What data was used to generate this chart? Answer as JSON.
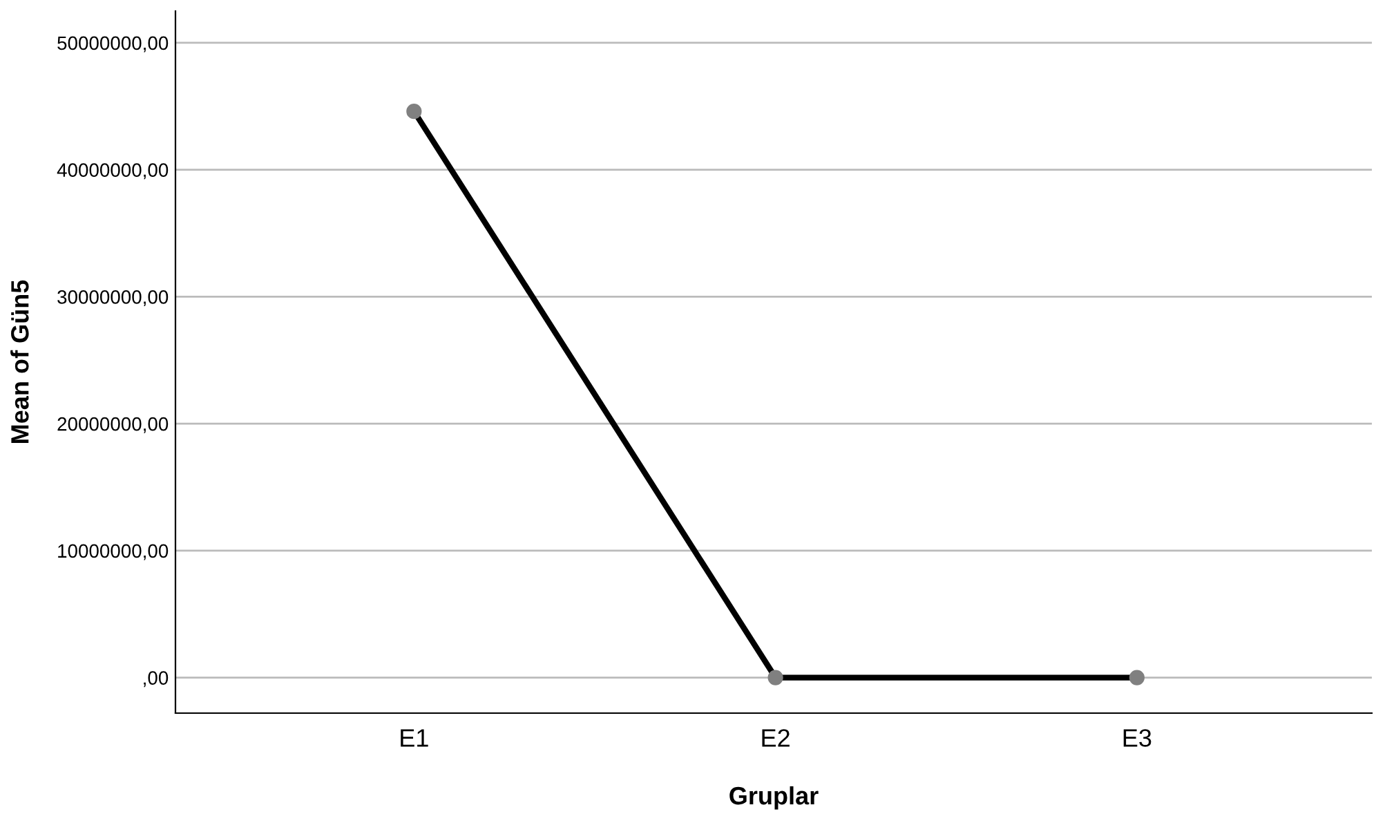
{
  "chart_data": {
    "type": "line",
    "xlabel": "Gruplar",
    "ylabel": "Mean of Gün5",
    "categories": [
      "E1",
      "E2",
      "E3"
    ],
    "series": [
      {
        "color": "#000000",
        "values": [
          44600000,
          0,
          0
        ]
      }
    ],
    "ylim": [
      -2800000,
      52500000
    ],
    "yticks": [
      {
        "value": 0,
        "label": ",00"
      },
      {
        "value": 10000000,
        "label": "10000000,00"
      },
      {
        "value": 20000000,
        "label": "20000000,00"
      },
      {
        "value": 30000000,
        "label": "30000000,00"
      },
      {
        "value": 40000000,
        "label": "40000000,00"
      },
      {
        "value": 50000000,
        "label": "50000000,00"
      }
    ],
    "grid": "y",
    "marker": "circle",
    "line_style": "solid"
  }
}
